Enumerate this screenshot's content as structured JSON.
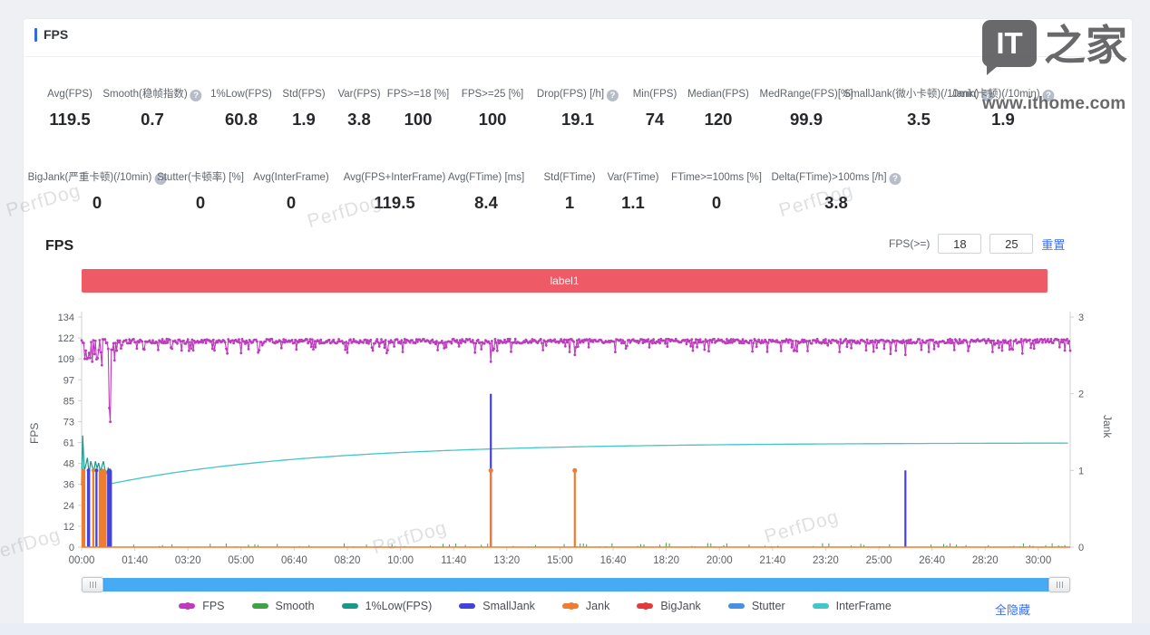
{
  "header": {
    "title": "FPS"
  },
  "watermark": {
    "logo_square": "IT",
    "logo_cn": "之家",
    "url": "www.ithome.com",
    "perfdog": "PerfDog"
  },
  "stats_row1": [
    {
      "label": "Avg(FPS)",
      "value": "119.5"
    },
    {
      "label": "Smooth(稳帧指数)",
      "info": true,
      "value": "0.7"
    },
    {
      "label": "1%Low(FPS)",
      "value": "60.8"
    },
    {
      "label": "Std(FPS)",
      "value": "1.9"
    },
    {
      "label": "Var(FPS)",
      "value": "3.8"
    },
    {
      "label": "FPS>=18 [%]",
      "value": "100"
    },
    {
      "label": "FPS>=25 [%]",
      "value": "100"
    },
    {
      "label": "Drop(FPS) [/h]",
      "info": true,
      "value": "19.1"
    },
    {
      "label": "Min(FPS)",
      "value": "74"
    },
    {
      "label": "Median(FPS)",
      "value": "120"
    },
    {
      "label": "MedRange(FPS)[%]",
      "value": "99.9"
    },
    {
      "label": "SmallJank(微小卡顿)",
      "label2": "(/10min)",
      "info": true,
      "value": "3.5"
    },
    {
      "label": "Jank(卡顿)",
      "label2": "(/10min)",
      "info": true,
      "value": "1.9"
    }
  ],
  "stats_row2": [
    {
      "label": "BigJank(严重卡顿)",
      "label2": "(/10min)",
      "info": true,
      "value": "0"
    },
    {
      "label": "Stutter(卡顿率) [%]",
      "value": "0"
    },
    {
      "label": "Avg(InterFrame)",
      "value": "0"
    },
    {
      "label": "Avg(FPS+InterFrame)",
      "value": "119.5"
    },
    {
      "label": "Avg(FTime) [ms]",
      "value": "8.4"
    },
    {
      "label": "Std(FTime)",
      "value": "1"
    },
    {
      "label": "Var(FTime)",
      "value": "1.1"
    },
    {
      "label": "FTime>=100ms [%]",
      "value": "0"
    },
    {
      "label": "Delta(FTime)>100ms [/h]",
      "info": true,
      "value": "3.8"
    }
  ],
  "chart_section": {
    "title": "FPS",
    "filter_label": "FPS(>=)",
    "fps_min": "18",
    "fps_max": "25",
    "reset_label": "重置",
    "hide_all_label": "全隐藏"
  },
  "chart_data": {
    "type": "line",
    "banner_label": "label1",
    "left_axis": {
      "label": "FPS",
      "ticks": [
        134,
        122,
        109,
        97,
        85,
        73,
        61,
        48,
        36,
        24,
        12,
        0
      ],
      "max": 134
    },
    "right_axis": {
      "label": "Jank",
      "ticks": [
        3,
        2,
        1,
        0
      ],
      "max": 3
    },
    "x_axis": {
      "tick_step_seconds": 100,
      "max_seconds": 1860,
      "tick_labels": [
        "00:00",
        "01:40",
        "03:20",
        "05:00",
        "06:40",
        "08:20",
        "10:00",
        "11:40",
        "13:20",
        "15:00",
        "16:40",
        "18:20",
        "20:00",
        "21:40",
        "23:20",
        "25:00",
        "26:40",
        "28:20",
        "30:00"
      ]
    },
    "legend": [
      {
        "name": "FPS",
        "color": "#bd3cbd",
        "marker": true
      },
      {
        "name": "Smooth",
        "color": "#3fa345"
      },
      {
        "name": "1%Low(FPS)",
        "color": "#17988a"
      },
      {
        "name": "SmallJank",
        "color": "#4343d9"
      },
      {
        "name": "Jank",
        "color": "#ee7d2f",
        "marker": true
      },
      {
        "name": "BigJank",
        "color": "#e23b3b",
        "marker": true
      },
      {
        "name": "Stutter",
        "color": "#4a90e2"
      },
      {
        "name": "InterFrame",
        "color": "#43c6c8"
      }
    ],
    "series": [
      {
        "name": "FPS",
        "color": "#bd3cbd",
        "axis": "left",
        "kind": "noisy_line",
        "baseline": 119.5,
        "typical_range": [
          116,
          121
        ],
        "busy_window": [
          4,
          70
        ],
        "dip_events": [
          [
            38,
            106
          ],
          [
            52,
            81
          ],
          [
            54,
            73
          ],
          [
            770,
            108
          ],
          [
            928,
            112
          ],
          [
            1550,
            112
          ]
        ]
      },
      {
        "name": "Smooth",
        "color": "#3fa345",
        "axis": "left",
        "kind": "blips",
        "max": 2.5
      },
      {
        "name": "1%Low(FPS)",
        "color": "#17988a",
        "axis": "left",
        "kind": "polyline",
        "points": [
          [
            0,
            36
          ],
          [
            2,
            65
          ],
          [
            5,
            44
          ],
          [
            8,
            48
          ],
          [
            11,
            52
          ],
          [
            14,
            43
          ],
          [
            17,
            50
          ],
          [
            20,
            47
          ],
          [
            23,
            44
          ],
          [
            26,
            50
          ],
          [
            29,
            46
          ],
          [
            32,
            49
          ],
          [
            35,
            44
          ],
          [
            38,
            47
          ],
          [
            41,
            50
          ],
          [
            44,
            45
          ],
          [
            47,
            43
          ],
          [
            50,
            46
          ],
          [
            53,
            44
          ],
          [
            56,
            42
          ]
        ]
      },
      {
        "name": "SmallJank",
        "color": "#4343d9",
        "axis": "right",
        "kind": "spikes",
        "bars": [
          [
            10,
            16,
            1
          ],
          [
            26,
            30,
            1
          ],
          [
            48,
            57,
            1
          ]
        ],
        "spikes": [
          [
            770,
            2
          ],
          [
            1550,
            1
          ]
        ]
      },
      {
        "name": "Jank",
        "color": "#ee7d2f",
        "axis": "right",
        "kind": "spikes",
        "baseline": 0,
        "bars": [
          [
            0,
            7,
            1
          ],
          [
            20,
            24,
            1
          ],
          [
            32,
            47,
            1
          ]
        ],
        "spikes": [
          [
            770,
            1
          ],
          [
            928,
            1
          ]
        ],
        "spike_markers": true
      },
      {
        "name": "BigJank",
        "color": "#e23b3b",
        "axis": "right",
        "kind": "spikes",
        "bars": [],
        "spikes": []
      },
      {
        "name": "Stutter",
        "color": "#4a90e2",
        "axis": "right",
        "kind": "spikes",
        "bars": [],
        "spikes": []
      },
      {
        "name": "InterFrame",
        "color": "#43c6c8",
        "axis": "left",
        "kind": "rising_curve",
        "start_t": 56,
        "start_value": 37,
        "end_value": 60.8,
        "tau": 380
      }
    ]
  }
}
